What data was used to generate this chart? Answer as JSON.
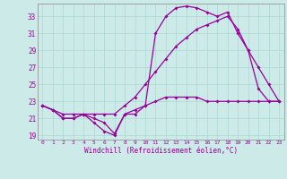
{
  "xlabel": "Windchill (Refroidissement éolien,°C)",
  "ylabel": "",
  "background_color": "#cceae7",
  "line_color": "#990099",
  "grid_color": "#aad8d4",
  "xlim": [
    -0.5,
    23.5
  ],
  "ylim": [
    18.5,
    34.5
  ],
  "yticks": [
    19,
    21,
    23,
    25,
    27,
    29,
    31,
    33
  ],
  "xticks": [
    0,
    1,
    2,
    3,
    4,
    5,
    6,
    7,
    8,
    9,
    10,
    11,
    12,
    13,
    14,
    15,
    16,
    17,
    18,
    19,
    20,
    21,
    22,
    23
  ],
  "series1_x": [
    0,
    1,
    2,
    3,
    4,
    5,
    6,
    7,
    8,
    9,
    10,
    11,
    12,
    13,
    14,
    15,
    16,
    17,
    18,
    19,
    20,
    21,
    22,
    23
  ],
  "series1_y": [
    22.5,
    22.0,
    21.0,
    21.0,
    21.5,
    21.0,
    20.5,
    19.2,
    21.5,
    22.0,
    22.5,
    23.0,
    23.5,
    23.5,
    23.5,
    23.5,
    23.0,
    23.0,
    23.0,
    23.0,
    23.0,
    23.0,
    23.0,
    23.0
  ],
  "series2_x": [
    0,
    1,
    2,
    3,
    4,
    5,
    6,
    7,
    8,
    9,
    10,
    11,
    12,
    13,
    14,
    15,
    16,
    17,
    18,
    19,
    20,
    21,
    22,
    23
  ],
  "series2_y": [
    22.5,
    22.0,
    21.5,
    21.5,
    21.5,
    21.5,
    21.5,
    21.5,
    22.5,
    23.5,
    25.0,
    26.5,
    28.0,
    29.5,
    30.5,
    31.5,
    32.0,
    32.5,
    33.0,
    31.5,
    29.0,
    27.0,
    25.0,
    23.0
  ],
  "series3_x": [
    0,
    1,
    2,
    3,
    4,
    5,
    6,
    7,
    8,
    9,
    10,
    11,
    12,
    13,
    14,
    15,
    16,
    17,
    18,
    19,
    20,
    21,
    22,
    23
  ],
  "series3_y": [
    22.5,
    22.0,
    21.0,
    21.0,
    21.5,
    20.5,
    19.5,
    19.0,
    21.5,
    21.5,
    22.5,
    31.0,
    33.0,
    34.0,
    34.2,
    34.0,
    33.5,
    33.0,
    33.5,
    31.0,
    29.0,
    24.5,
    23.0,
    23.0
  ]
}
